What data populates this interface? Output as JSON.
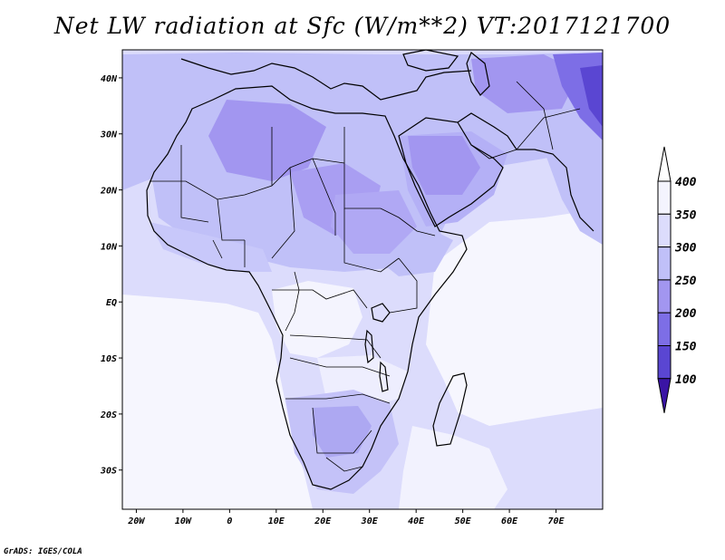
{
  "title": "Net LW radiation at Sfc (W/m**2) VT:2017121700",
  "credit": "GrADS: IGES/COLA",
  "map": {
    "lon_range": [
      -23,
      80
    ],
    "lat_range": [
      -37,
      45
    ],
    "lon_ticks": [
      {
        "value": -20,
        "label": "20W"
      },
      {
        "value": -10,
        "label": "10W"
      },
      {
        "value": 0,
        "label": "0"
      },
      {
        "value": 10,
        "label": "10E"
      },
      {
        "value": 20,
        "label": "20E"
      },
      {
        "value": 30,
        "label": "30E"
      },
      {
        "value": 40,
        "label": "40E"
      },
      {
        "value": 50,
        "label": "50E"
      },
      {
        "value": 60,
        "label": "60E"
      },
      {
        "value": 70,
        "label": "70E"
      }
    ],
    "lat_ticks": [
      {
        "value": 40,
        "label": "40N"
      },
      {
        "value": 30,
        "label": "30N"
      },
      {
        "value": 20,
        "label": "20N"
      },
      {
        "value": 10,
        "label": "10N"
      },
      {
        "value": 0,
        "label": "EQ"
      },
      {
        "value": -10,
        "label": "10S"
      },
      {
        "value": -20,
        "label": "20S"
      },
      {
        "value": -30,
        "label": "30S"
      }
    ]
  },
  "colorbar": {
    "levels": [
      "400",
      "350",
      "300",
      "250",
      "200",
      "150",
      "100"
    ],
    "colors": [
      "#f4f4fe",
      "#dcdcfc",
      "#c0c0f8",
      "#a296f0",
      "#7d6ee6",
      "#5a46d2",
      "#3c1eaa"
    ],
    "top_color": "#ffffff",
    "bottom_color": "#3a14a5"
  },
  "colors": {
    "background": "#ffffff",
    "field_light": "#dcdcfc",
    "field_medium": "#c0c0f8",
    "field_dark": "#a296f0",
    "field_darkest": "#7d6ee6"
  }
}
